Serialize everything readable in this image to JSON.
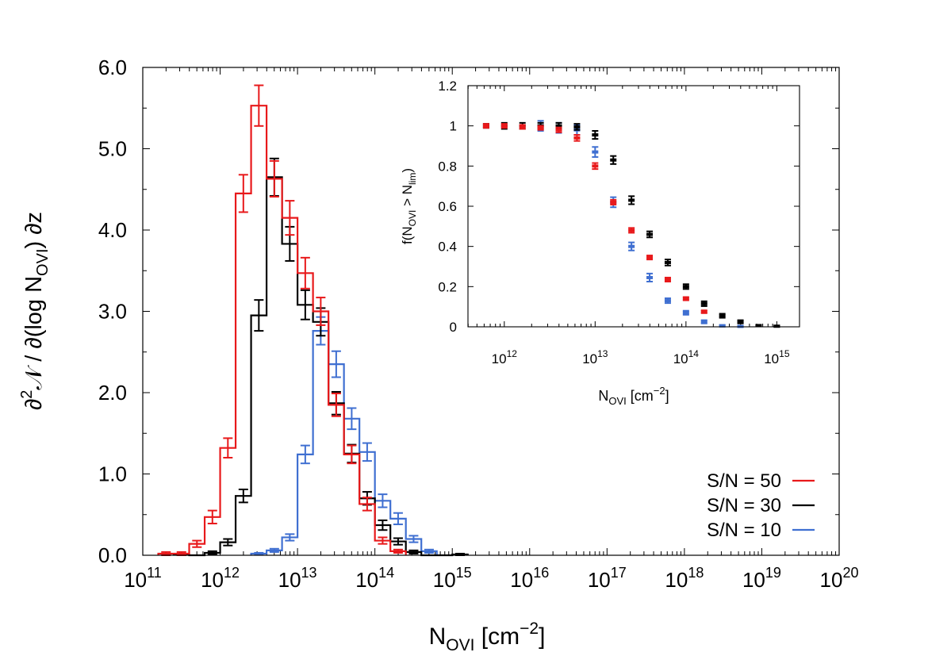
{
  "chart_data": [
    {
      "type": "histogram-step",
      "xlabel": {
        "base": "N",
        "sub": "OVI",
        "unit": "[cm",
        "sup": "−2",
        "close": "]"
      },
      "ylabel": {
        "pre": "∂",
        "sup": "2",
        "mid": "𝒩 / ∂(log N",
        "sub": "OVI",
        "post": ") ∂z"
      },
      "x_scale": "log10",
      "xlim": [
        100000000000.0,
        1e+20
      ],
      "ylim": [
        0,
        6
      ],
      "x_ticks": [
        {
          "m": "10",
          "e": "11"
        },
        {
          "m": "10",
          "e": "12"
        },
        {
          "m": "10",
          "e": "13"
        },
        {
          "m": "10",
          "e": "14"
        },
        {
          "m": "10",
          "e": "15"
        },
        {
          "m": "10",
          "e": "16"
        },
        {
          "m": "10",
          "e": "17"
        },
        {
          "m": "10",
          "e": "18"
        },
        {
          "m": "10",
          "e": "19"
        },
        {
          "m": "10",
          "e": "20"
        }
      ],
      "y_ticks": [
        {
          "v": 0,
          "label": "0.0"
        },
        {
          "v": 1,
          "label": "1.0"
        },
        {
          "v": 2,
          "label": "2.0"
        },
        {
          "v": 3,
          "label": "3.0"
        },
        {
          "v": 4,
          "label": "4.0"
        },
        {
          "v": 5,
          "label": "5.0"
        },
        {
          "v": 6,
          "label": "6.0"
        }
      ],
      "bin_edges_log10": [
        11.0,
        11.2,
        11.4,
        11.6,
        11.8,
        12.0,
        12.2,
        12.4,
        12.6,
        12.8,
        13.0,
        13.2,
        13.4,
        13.6,
        13.8,
        14.0,
        14.2,
        14.4,
        14.6,
        14.8,
        15.0,
        15.2
      ],
      "legend_position": "bottom-right",
      "series": [
        {
          "name": "S/N = 50",
          "color": "#e8191b",
          "values": [
            0,
            0.02,
            0.02,
            0.14,
            0.47,
            1.32,
            4.45,
            5.53,
            4.63,
            4.15,
            3.47,
            3.0,
            1.85,
            1.24,
            0.63,
            0.18,
            0.05,
            0,
            0,
            0,
            0
          ],
          "errors": [
            0,
            0.02,
            0.02,
            0.04,
            0.08,
            0.12,
            0.23,
            0.25,
            0.22,
            0.21,
            0.19,
            0.17,
            0.14,
            0.11,
            0.08,
            0.04,
            0.02,
            0,
            0,
            0,
            0
          ]
        },
        {
          "name": "S/N = 30",
          "color": "#000000",
          "values": [
            0,
            0,
            0.01,
            0,
            0.03,
            0.16,
            0.73,
            2.95,
            4.65,
            3.83,
            3.08,
            2.87,
            1.87,
            1.25,
            0.7,
            0.37,
            0.17,
            0.04,
            0,
            0,
            0.01
          ],
          "errors": [
            0,
            0,
            0.01,
            0,
            0.02,
            0.04,
            0.08,
            0.19,
            0.23,
            0.21,
            0.18,
            0.17,
            0.14,
            0.11,
            0.08,
            0.06,
            0.04,
            0.02,
            0,
            0,
            0.01
          ]
        },
        {
          "name": "S/N = 10",
          "color": "#3f6fd1",
          "values": [
            0,
            0,
            0,
            0,
            0,
            0,
            0,
            0.02,
            0.06,
            0.22,
            1.24,
            2.76,
            2.35,
            1.68,
            1.27,
            0.67,
            0.45,
            0.2,
            0.05,
            0,
            0
          ],
          "errors": [
            0,
            0,
            0,
            0,
            0,
            0,
            0,
            0.01,
            0.02,
            0.04,
            0.11,
            0.17,
            0.16,
            0.13,
            0.11,
            0.08,
            0.07,
            0.04,
            0.02,
            0,
            0
          ]
        }
      ]
    },
    {
      "type": "scatter",
      "xlabel": {
        "base": "N",
        "sub": "OVI",
        "unit": "[cm",
        "sup": "−2",
        "close": "]"
      },
      "ylabel": {
        "pre": "f(N",
        "sub": "OVI",
        "mid": " > N",
        "sub2": "lim",
        "post": ")"
      },
      "x_scale": "log10",
      "xlim": [
        100000000000.0,
        1000000000000000.0
      ],
      "ylim": [
        0,
        1.2
      ],
      "x_ticks": [
        {
          "m": "10",
          "e": "12"
        },
        {
          "m": "10",
          "e": "13"
        },
        {
          "m": "10",
          "e": "14"
        },
        {
          "m": "10",
          "e": "15"
        }
      ],
      "y_ticks": [
        {
          "v": 0,
          "label": "0"
        },
        {
          "v": 0.2,
          "label": "0.2"
        },
        {
          "v": 0.4,
          "label": "0.4"
        },
        {
          "v": 0.6,
          "label": "0.6"
        },
        {
          "v": 0.8,
          "label": "0.8"
        },
        {
          "v": 1.0,
          "label": "1"
        },
        {
          "v": 1.2,
          "label": "1.2"
        }
      ],
      "series": [
        {
          "name": "S/N = 50",
          "color": "#e8191b",
          "x_log10": [
            11.8,
            12.0,
            12.2,
            12.4,
            12.6,
            12.8,
            13.0,
            13.2,
            13.4,
            13.6,
            13.8,
            14.0,
            14.2
          ],
          "values": [
            1.0,
            1.0,
            0.995,
            0.99,
            0.98,
            0.94,
            0.8,
            0.62,
            0.48,
            0.345,
            0.235,
            0.14,
            0.075
          ],
          "errors": [
            0.01,
            0.01,
            0.01,
            0.01,
            0.012,
            0.015,
            0.015,
            0.012,
            0.012,
            0.01,
            0.01,
            0.008,
            0.007
          ]
        },
        {
          "name": "S/N = 30",
          "color": "#000000",
          "x_log10": [
            11.8,
            12.0,
            12.2,
            12.4,
            12.6,
            12.8,
            13.0,
            13.2,
            13.4,
            13.6,
            13.8,
            14.0,
            14.2,
            14.4,
            14.6,
            14.8,
            15.0
          ],
          "values": [
            1.0,
            1.0,
            1.0,
            1.0,
            1.0,
            0.995,
            0.955,
            0.83,
            0.63,
            0.46,
            0.32,
            0.2,
            0.115,
            0.055,
            0.025,
            0.006,
            0.003
          ],
          "errors": [
            0.01,
            0.015,
            0.015,
            0.015,
            0.015,
            0.015,
            0.02,
            0.02,
            0.02,
            0.015,
            0.015,
            0.012,
            0.012,
            0.01,
            0.008,
            0.004,
            0.003
          ]
        },
        {
          "name": "S/N = 10",
          "color": "#3f6fd1",
          "x_log10": [
            12.4,
            12.6,
            12.8,
            13.0,
            13.2,
            13.4,
            13.6,
            13.8,
            14.0,
            14.2,
            14.4,
            14.6
          ],
          "values": [
            1.0,
            0.99,
            0.98,
            0.87,
            0.62,
            0.4,
            0.245,
            0.13,
            0.07,
            0.025,
            0.005,
            0.002
          ],
          "errors": [
            0.025,
            0.025,
            0.025,
            0.025,
            0.025,
            0.02,
            0.02,
            0.012,
            0.01,
            0.008,
            0.004,
            0.002
          ]
        }
      ]
    }
  ]
}
